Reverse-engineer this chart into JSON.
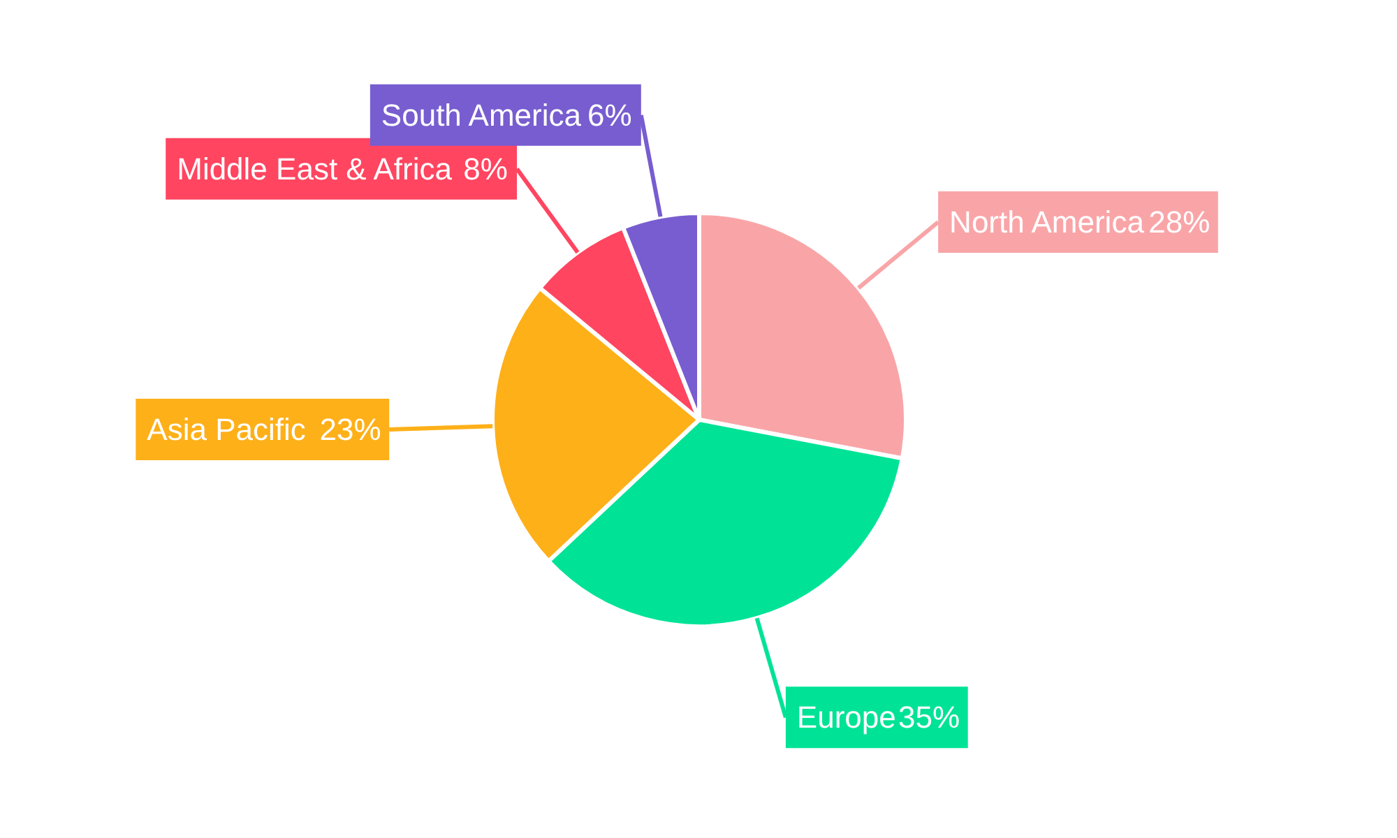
{
  "chart_data": {
    "type": "pie",
    "categories": [
      "North America",
      "Europe",
      "Asia Pacific",
      "Middle East & Africa",
      "South America"
    ],
    "values": [
      28,
      35,
      23,
      8,
      6
    ],
    "colors": [
      "#f9a5a8",
      "#00e396",
      "#feb019",
      "#ff4560",
      "#775dd0"
    ],
    "value_labels": [
      "28%",
      "35%",
      "23%",
      "8%",
      "6%"
    ]
  }
}
